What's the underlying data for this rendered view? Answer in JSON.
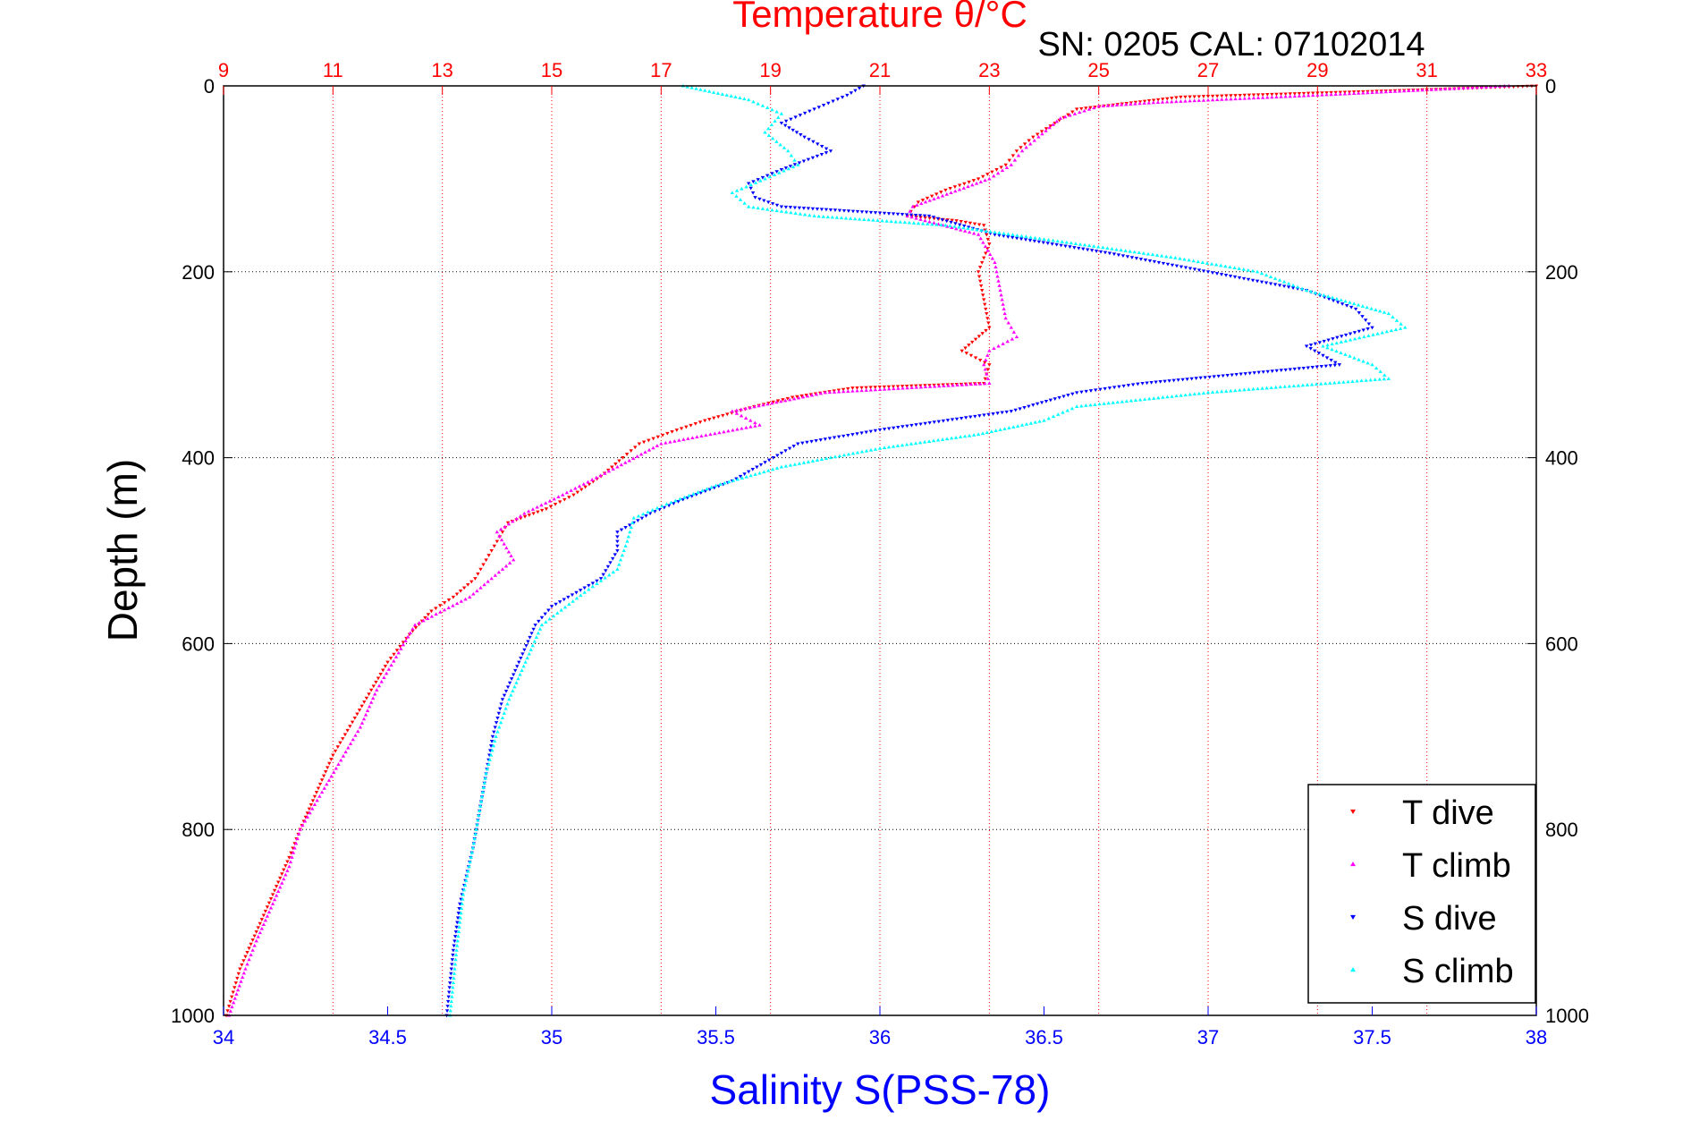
{
  "chart_data": {
    "type": "scatter",
    "title": "Temperature θ/°C",
    "subtitle": "SN: 0205  CAL: 07102014",
    "xlabel": "Salinity S(PSS-78)",
    "ylabel": "Depth (m)",
    "x_bottom": {
      "label": "Salinity S(PSS-78)",
      "lim": [
        34,
        38
      ],
      "ticks": [
        34,
        34.5,
        35,
        35.5,
        36,
        36.5,
        37,
        37.5,
        38
      ],
      "tick_labels": [
        "34",
        "34.5",
        "35",
        "35.5",
        "36",
        "36.5",
        "37",
        "37.5",
        "38"
      ],
      "color": "#0000ff"
    },
    "x_top": {
      "label": "Temperature θ/°C",
      "lim": [
        9,
        33
      ],
      "ticks": [
        9,
        11,
        13,
        15,
        17,
        19,
        21,
        23,
        25,
        27,
        29,
        31,
        33
      ],
      "tick_labels": [
        "9",
        "11",
        "13",
        "15",
        "17",
        "19",
        "21",
        "23",
        "25",
        "27",
        "29",
        "31",
        "33"
      ],
      "color": "#ff0000"
    },
    "y": {
      "label": "Depth (m)",
      "lim": [
        0,
        1000
      ],
      "reversed": true,
      "ticks": [
        0,
        200,
        400,
        600,
        800,
        1000
      ],
      "tick_labels": [
        "0",
        "200",
        "400",
        "600",
        "800",
        "1000"
      ]
    },
    "grid": true,
    "legend_position": "bottom-right",
    "series": [
      {
        "name": "T dive",
        "axis": "top",
        "color": "#ff0000",
        "marker": "triangle-down",
        "points": [
          [
            33.0,
            0
          ],
          [
            30.5,
            5
          ],
          [
            26.5,
            12
          ],
          [
            24.6,
            25
          ],
          [
            24.2,
            40
          ],
          [
            23.8,
            55
          ],
          [
            23.5,
            70
          ],
          [
            23.3,
            85
          ],
          [
            22.8,
            100
          ],
          [
            22.2,
            112
          ],
          [
            21.7,
            125
          ],
          [
            21.5,
            140
          ],
          [
            22.4,
            145
          ],
          [
            22.9,
            150
          ],
          [
            23.0,
            170
          ],
          [
            22.8,
            200
          ],
          [
            22.9,
            230
          ],
          [
            23.0,
            260
          ],
          [
            22.5,
            285
          ],
          [
            23.0,
            300
          ],
          [
            22.9,
            320
          ],
          [
            20.5,
            325
          ],
          [
            19.4,
            335
          ],
          [
            18.7,
            345
          ],
          [
            17.8,
            360
          ],
          [
            17.2,
            372
          ],
          [
            16.6,
            385
          ],
          [
            16.3,
            400
          ],
          [
            15.9,
            420
          ],
          [
            15.4,
            440
          ],
          [
            14.9,
            455
          ],
          [
            14.2,
            470
          ],
          [
            14.0,
            490
          ],
          [
            13.8,
            510
          ],
          [
            13.6,
            530
          ],
          [
            13.2,
            550
          ],
          [
            12.8,
            565
          ],
          [
            12.4,
            590
          ],
          [
            12.0,
            620
          ],
          [
            11.7,
            650
          ],
          [
            11.4,
            680
          ],
          [
            11.0,
            720
          ],
          [
            10.7,
            760
          ],
          [
            10.4,
            800
          ],
          [
            10.2,
            830
          ],
          [
            9.9,
            870
          ],
          [
            9.6,
            910
          ],
          [
            9.3,
            950
          ],
          [
            9.05,
            1000
          ]
        ]
      },
      {
        "name": "T climb",
        "axis": "top",
        "color": "#ff00ff",
        "marker": "triangle-up",
        "points": [
          [
            32.5,
            0
          ],
          [
            29.0,
            10
          ],
          [
            27.5,
            14
          ],
          [
            26.0,
            18
          ],
          [
            25.0,
            22
          ],
          [
            24.3,
            35
          ],
          [
            23.9,
            55
          ],
          [
            23.6,
            70
          ],
          [
            23.4,
            85
          ],
          [
            23.0,
            100
          ],
          [
            22.3,
            115
          ],
          [
            21.6,
            130
          ],
          [
            21.5,
            140
          ],
          [
            22.8,
            160
          ],
          [
            23.1,
            190
          ],
          [
            23.2,
            220
          ],
          [
            23.3,
            250
          ],
          [
            23.5,
            270
          ],
          [
            23.0,
            285
          ],
          [
            22.9,
            300
          ],
          [
            23.0,
            320
          ],
          [
            20.0,
            330
          ],
          [
            18.3,
            350
          ],
          [
            18.8,
            365
          ],
          [
            17.0,
            385
          ],
          [
            16.2,
            410
          ],
          [
            15.2,
            440
          ],
          [
            14.5,
            460
          ],
          [
            14.0,
            480
          ],
          [
            14.3,
            510
          ],
          [
            13.5,
            550
          ],
          [
            12.5,
            580
          ],
          [
            12.2,
            610
          ],
          [
            11.8,
            650
          ],
          [
            11.5,
            690
          ],
          [
            11.1,
            730
          ],
          [
            10.8,
            760
          ],
          [
            10.4,
            800
          ],
          [
            10.2,
            840
          ],
          [
            9.9,
            880
          ],
          [
            9.6,
            920
          ],
          [
            9.4,
            950
          ],
          [
            9.1,
            1000
          ]
        ]
      },
      {
        "name": "S dive",
        "axis": "bottom",
        "color": "#0000ff",
        "marker": "triangle-down",
        "points": [
          [
            35.95,
            0
          ],
          [
            35.9,
            10
          ],
          [
            35.8,
            25
          ],
          [
            35.7,
            40
          ],
          [
            35.77,
            55
          ],
          [
            35.85,
            70
          ],
          [
            35.7,
            90
          ],
          [
            35.6,
            105
          ],
          [
            35.62,
            120
          ],
          [
            35.7,
            130
          ],
          [
            36.15,
            140
          ],
          [
            36.35,
            160
          ],
          [
            36.7,
            180
          ],
          [
            37.0,
            200
          ],
          [
            37.3,
            220
          ],
          [
            37.45,
            240
          ],
          [
            37.5,
            260
          ],
          [
            37.3,
            280
          ],
          [
            37.4,
            300
          ],
          [
            37.1,
            310
          ],
          [
            36.8,
            320
          ],
          [
            36.6,
            330
          ],
          [
            36.4,
            350
          ],
          [
            36.0,
            370
          ],
          [
            35.75,
            385
          ],
          [
            35.65,
            405
          ],
          [
            35.55,
            425
          ],
          [
            35.4,
            445
          ],
          [
            35.3,
            460
          ],
          [
            35.2,
            480
          ],
          [
            35.2,
            500
          ],
          [
            35.15,
            530
          ],
          [
            35.0,
            560
          ],
          [
            34.95,
            580
          ],
          [
            34.9,
            620
          ],
          [
            34.85,
            660
          ],
          [
            34.82,
            700
          ],
          [
            34.8,
            740
          ],
          [
            34.78,
            780
          ],
          [
            34.76,
            820
          ],
          [
            34.72,
            880
          ],
          [
            34.7,
            930
          ],
          [
            34.68,
            1000
          ]
        ]
      },
      {
        "name": "S climb",
        "axis": "bottom",
        "color": "#00ffff",
        "marker": "triangle-up",
        "points": [
          [
            35.4,
            0
          ],
          [
            35.6,
            15
          ],
          [
            35.7,
            30
          ],
          [
            35.65,
            50
          ],
          [
            35.72,
            70
          ],
          [
            35.75,
            85
          ],
          [
            35.65,
            100
          ],
          [
            35.55,
            115
          ],
          [
            35.6,
            130
          ],
          [
            35.8,
            140
          ],
          [
            36.2,
            150
          ],
          [
            36.5,
            165
          ],
          [
            36.9,
            185
          ],
          [
            37.15,
            200
          ],
          [
            37.3,
            220
          ],
          [
            37.55,
            245
          ],
          [
            37.6,
            260
          ],
          [
            37.35,
            280
          ],
          [
            37.5,
            300
          ],
          [
            37.55,
            315
          ],
          [
            37.0,
            330
          ],
          [
            36.6,
            345
          ],
          [
            36.5,
            360
          ],
          [
            36.3,
            375
          ],
          [
            36.0,
            390
          ],
          [
            35.7,
            410
          ],
          [
            35.5,
            430
          ],
          [
            35.35,
            450
          ],
          [
            35.25,
            465
          ],
          [
            35.23,
            490
          ],
          [
            35.2,
            520
          ],
          [
            35.1,
            545
          ],
          [
            34.97,
            580
          ],
          [
            34.92,
            620
          ],
          [
            34.87,
            660
          ],
          [
            34.83,
            700
          ],
          [
            34.8,
            740
          ],
          [
            34.78,
            780
          ],
          [
            34.76,
            820
          ],
          [
            34.73,
            870
          ],
          [
            34.71,
            930
          ],
          [
            34.69,
            1000
          ]
        ]
      }
    ]
  }
}
